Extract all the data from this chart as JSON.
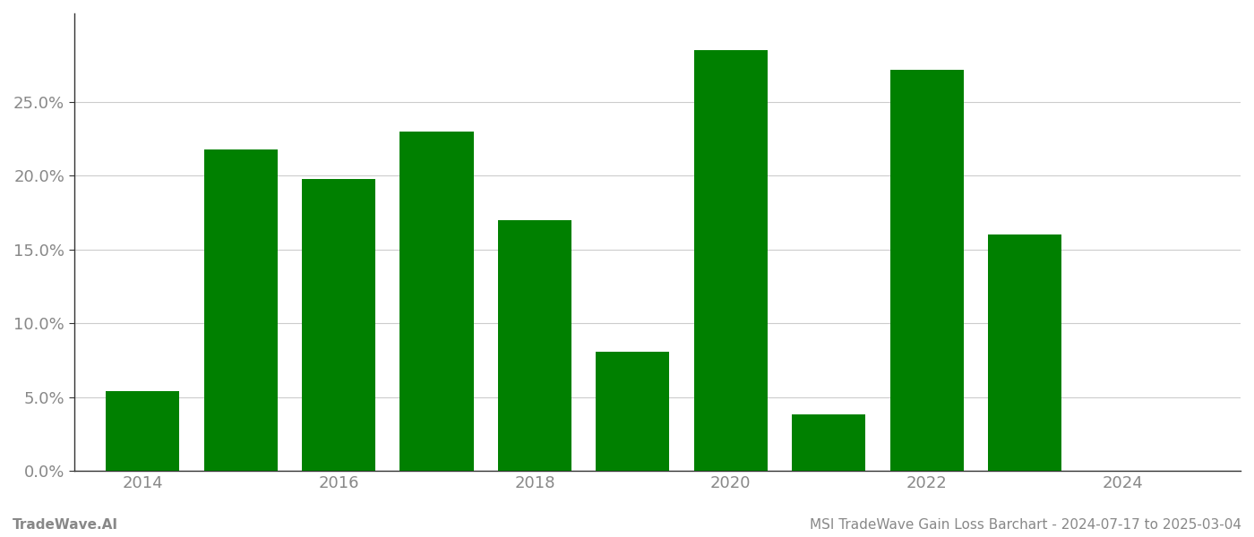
{
  "years": [
    2014,
    2015,
    2016,
    2017,
    2018,
    2019,
    2020,
    2021,
    2022,
    2023,
    2024
  ],
  "values": [
    0.054,
    0.218,
    0.198,
    0.23,
    0.17,
    0.081,
    0.285,
    0.038,
    0.272,
    0.16,
    null
  ],
  "bar_color": "#008000",
  "background_color": "#ffffff",
  "grid_color": "#cccccc",
  "axis_color": "#333333",
  "tick_label_color": "#888888",
  "ylim": [
    0.0,
    0.31
  ],
  "yticks": [
    0.0,
    0.05,
    0.1,
    0.15,
    0.2,
    0.25
  ],
  "xticks": [
    2014,
    2016,
    2018,
    2020,
    2022,
    2024
  ],
  "xlim_left": 2013.3,
  "xlim_right": 2025.2,
  "footer_left": "TradeWave.AI",
  "footer_right": "MSI TradeWave Gain Loss Barchart - 2024-07-17 to 2025-03-04",
  "footer_color": "#888888",
  "footer_fontsize": 11,
  "tick_fontsize": 13,
  "bar_width": 0.75
}
